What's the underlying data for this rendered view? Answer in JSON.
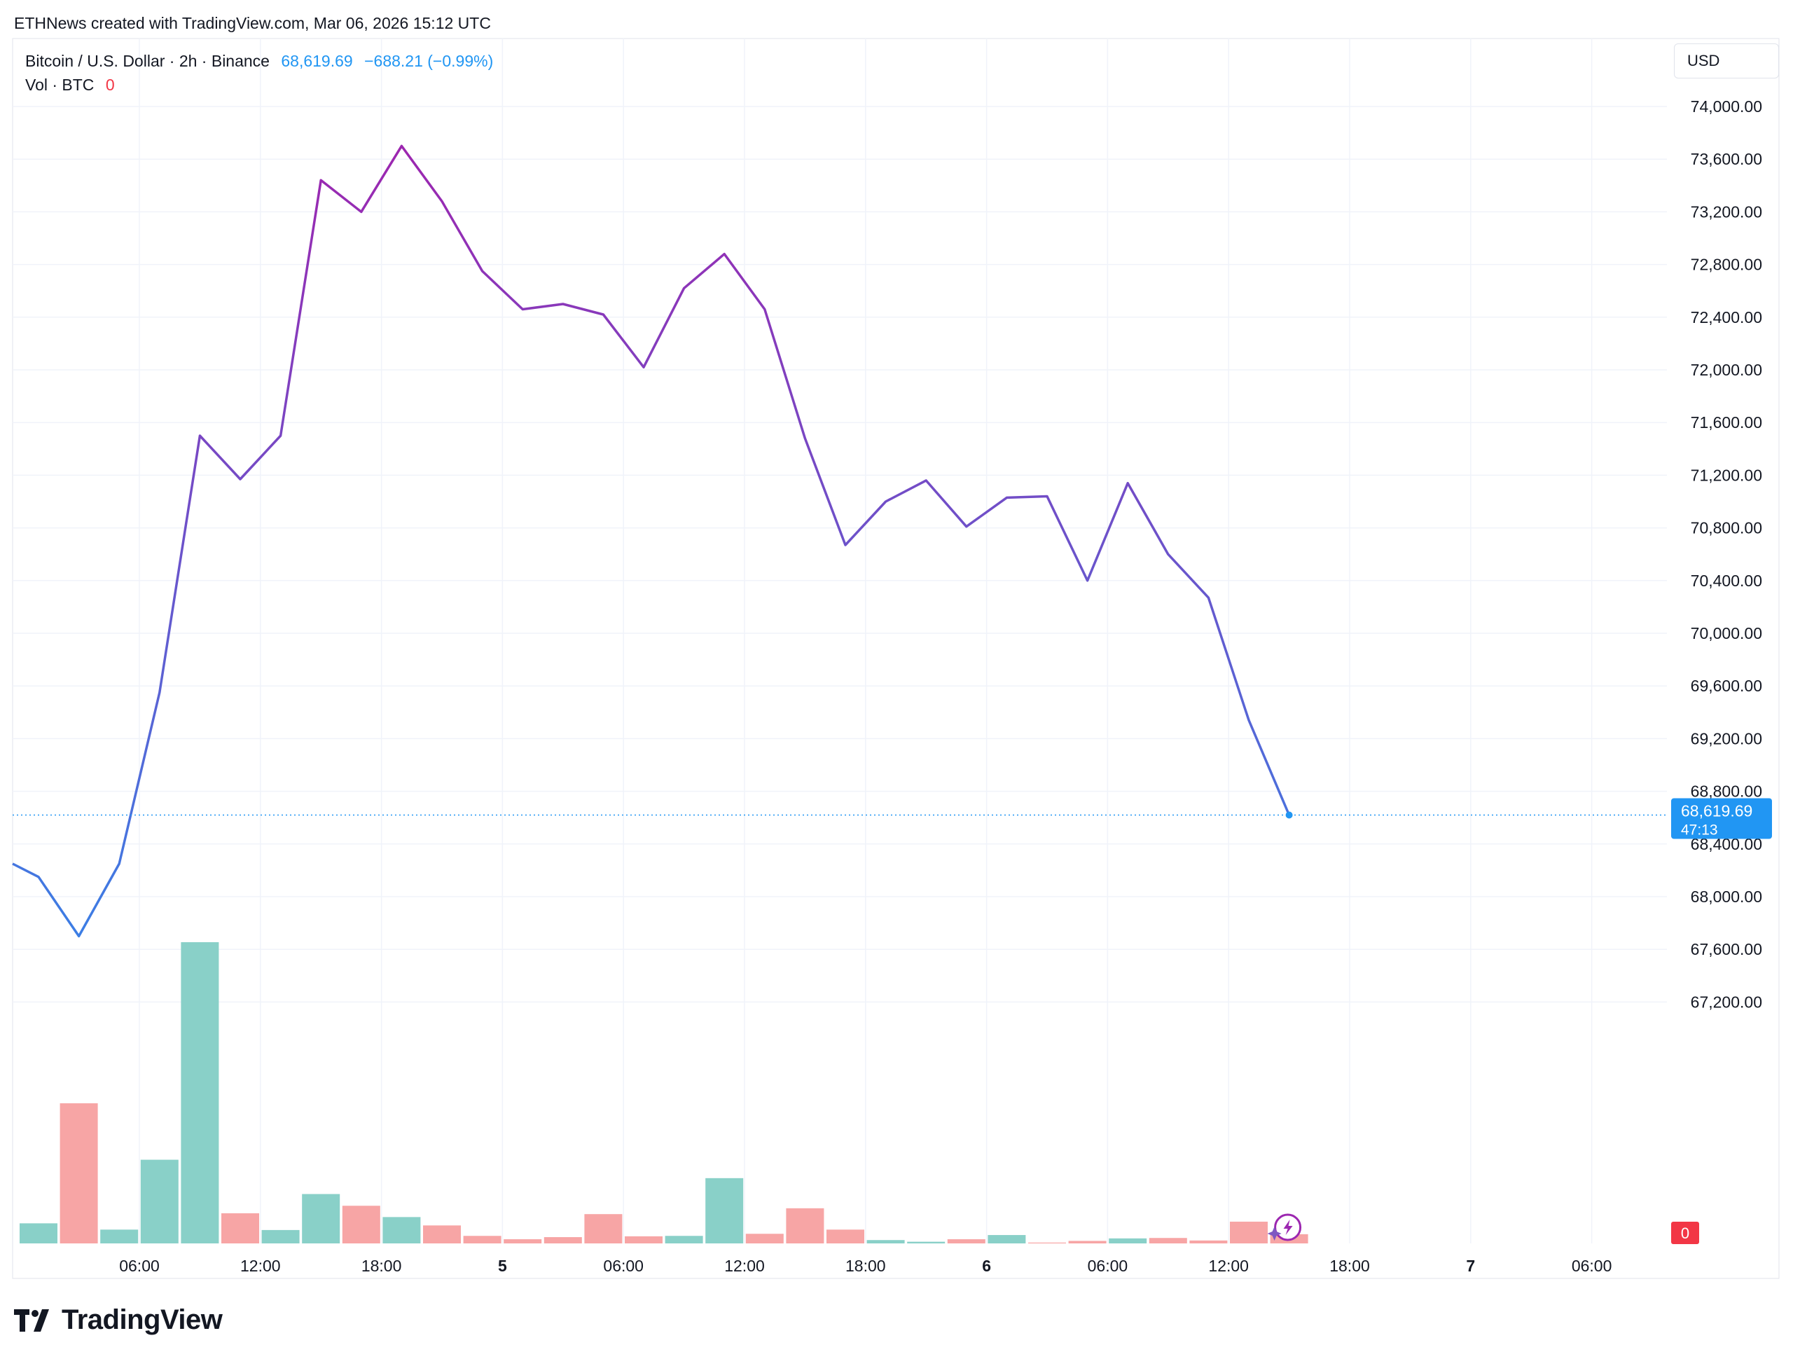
{
  "header": {
    "created_by": "ETHNews created with TradingView.com, Mar 06, 2026 15:12 UTC",
    "symbol": "Bitcoin / U.S. Dollar · 2h · Binance",
    "last_price": "68,619.69",
    "change": "−688.21 (−0.99%)",
    "vol_label": "Vol · BTC",
    "vol_value": "0"
  },
  "price_scale": {
    "currency": "USD",
    "current_price_label": "68,619.69",
    "countdown": "47:13",
    "volume_badge": "0"
  },
  "logo": {
    "text": "TradingView"
  },
  "colors": {
    "line_start": "#2196f3",
    "line_peak": "#9c27b0",
    "volume_up": "#89d0c8",
    "volume_down": "#f7a5a5",
    "accent": "#2196f3",
    "grid": "#f0f3fa"
  },
  "chart_data": {
    "type": "line",
    "title": "",
    "xlabel": "",
    "ylabel": "",
    "ylim": [
      67000,
      74400
    ],
    "y_ticks": [
      "74,000.00",
      "73,600.00",
      "73,200.00",
      "72,800.00",
      "72,400.00",
      "72,000.00",
      "71,600.00",
      "71,200.00",
      "70,800.00",
      "70,400.00",
      "70,000.00",
      "69,600.00",
      "69,200.00",
      "68,800.00",
      "68,400.00",
      "68,000.00",
      "67,600.00",
      "67,200.00"
    ],
    "y_tick_values": [
      74000,
      73600,
      73200,
      72800,
      72400,
      72000,
      71600,
      71200,
      70800,
      70400,
      70000,
      69600,
      69200,
      68800,
      68400,
      68000,
      67600,
      67200
    ],
    "x_ticks": [
      {
        "label": "06:00",
        "bar": 2.5,
        "bold": false
      },
      {
        "label": "12:00",
        "bar": 5.5,
        "bold": false
      },
      {
        "label": "18:00",
        "bar": 8.5,
        "bold": false
      },
      {
        "label": "5",
        "bar": 11.5,
        "bold": true
      },
      {
        "label": "06:00",
        "bar": 14.5,
        "bold": false
      },
      {
        "label": "12:00",
        "bar": 17.5,
        "bold": false
      },
      {
        "label": "18:00",
        "bar": 20.5,
        "bold": false
      },
      {
        "label": "6",
        "bar": 23.5,
        "bold": true
      },
      {
        "label": "06:00",
        "bar": 26.5,
        "bold": false
      },
      {
        "label": "12:00",
        "bar": 29.5,
        "bold": false
      },
      {
        "label": "18:00",
        "bar": 32.5,
        "bold": false
      },
      {
        "label": "7",
        "bar": 35.5,
        "bold": true
      },
      {
        "label": "06:00",
        "bar": 38.5,
        "bold": false
      }
    ],
    "series": [
      {
        "type": "line",
        "values": [
          68150,
          67700,
          68250,
          69550,
          71500,
          71170,
          71500,
          73440,
          73200,
          73700,
          73280,
          72750,
          72460,
          72500,
          72420,
          72020,
          72620,
          72880,
          72460,
          71480,
          70670,
          71000,
          71160,
          70810,
          71030,
          71040,
          70400,
          71140,
          70600,
          70270,
          69340,
          68619.69
        ]
      },
      {
        "type": "bar",
        "direction": [
          "up",
          "down",
          "up",
          "up",
          "up",
          "down",
          "up",
          "up",
          "down",
          "up",
          "down",
          "down",
          "down",
          "down",
          "down",
          "down",
          "up",
          "up",
          "down",
          "down",
          "down",
          "up",
          "up",
          "down",
          "up",
          "down",
          "down",
          "up",
          "down",
          "down",
          "down",
          "down"
        ],
        "values": [
          480,
          3350,
          330,
          2000,
          7200,
          720,
          320,
          1180,
          900,
          630,
          430,
          180,
          100,
          150,
          700,
          170,
          180,
          1560,
          230,
          840,
          330,
          80,
          40,
          100,
          200,
          20,
          60,
          120,
          130,
          70,
          520,
          220
        ]
      }
    ],
    "grid": true,
    "legend": "none"
  }
}
